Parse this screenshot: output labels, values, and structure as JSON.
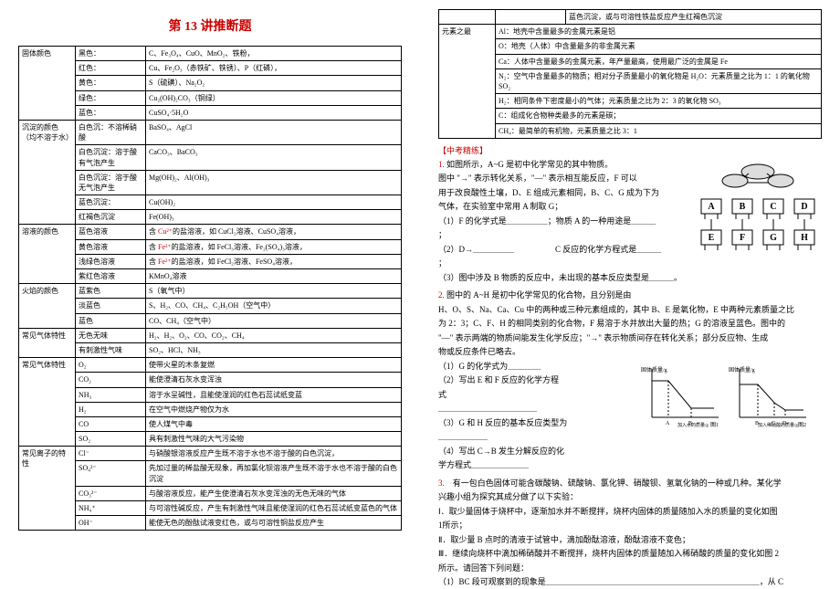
{
  "title": "第 13 讲推断题",
  "left_table": [
    {
      "cat": "固体颜色",
      "rows": [
        {
          "sub": "黑色：",
          "desc": "C、Fe₃O₄、CuO、MnO₂、铁粉，"
        },
        {
          "sub": "红色：",
          "desc": "Cu、Fe₂O₃（赤铁矿、铁锈）、P（红磷），"
        },
        {
          "sub": "黄色：",
          "desc": "S（硫磺）、Na₂O₂"
        },
        {
          "sub": "绿色：",
          "desc": "Cu₂(OH)₂CO₃（铜绿）"
        },
        {
          "sub": "蓝色：",
          "desc": "CuSO₄·5H₂O"
        }
      ]
    },
    {
      "cat": "沉淀的颜色（均不溶于水）",
      "rows": [
        {
          "sub": "白色沉：不溶稀硝酸",
          "desc": "BaSO₄、AgCl"
        },
        {
          "sub": "白色沉淀：溶于酸有气泡产生",
          "desc": "CaCO₃、BaCO₃"
        },
        {
          "sub": "白色沉淀：溶于酸无气泡产生",
          "desc": "Mg(OH)₂、Al(OH)₃"
        },
        {
          "sub": "蓝色沉淀：",
          "desc": "Cu(OH)₂"
        },
        {
          "sub": "红褐色沉淀",
          "desc": "Fe(OH)₃"
        }
      ]
    },
    {
      "cat": "溶液的颜色",
      "rows": [
        {
          "sub": "蓝色溶液",
          "desc": "含 Cu²⁺的盐溶液，如 CuCl₂溶液、CuSO₄溶液，"
        },
        {
          "sub": "黄色溶液",
          "desc": "含 Fe³⁺的盐溶液，如 FeCl₃溶液、Fe₂(SO₄)₃溶液，"
        },
        {
          "sub": "浅绿色溶液",
          "desc": "含 Fe²⁺的盐溶液，如 FeCl₂溶液、FeSO₄溶液，"
        },
        {
          "sub": "紫红色溶液",
          "desc": "KMnO₄溶液"
        }
      ]
    },
    {
      "cat": "火焰的颜色",
      "rows": [
        {
          "sub": "蓝紫色",
          "desc": "S（氧气中）"
        },
        {
          "sub": "淡蓝色",
          "desc": "S、H₂、CO、CH₄、C₂H₅OH（空气中）"
        },
        {
          "sub": "蓝色",
          "desc": "CO、CH₄（空气中）"
        }
      ]
    },
    {
      "cat": "常见气体特性",
      "rows": [
        {
          "sub": "无色无味",
          "desc": "H₂、H₂、O₂、CO、CO₂、CH₄"
        },
        {
          "sub": "有刺激性气味",
          "desc": "SO₂、HCl、NH₃"
        }
      ]
    },
    {
      "cat": "常见气体特性",
      "rows": [
        {
          "sub": "O₂",
          "desc": "使带火星的木条复燃"
        },
        {
          "sub": "CO₂",
          "desc": "能使澄清石灰水变浑浊"
        },
        {
          "sub": "NH₃",
          "desc": "溶于水呈碱性，且能使湿润的红色石蕊试纸变蓝"
        },
        {
          "sub": "H₂",
          "desc": "在空气中燃烧产物仅为水"
        },
        {
          "sub": "CO",
          "desc": "使人煤气中毒"
        },
        {
          "sub": "SO₂",
          "desc": "具有刺激性气味的大气污染物"
        }
      ]
    },
    {
      "cat": "常见离子的特性",
      "rows": [
        {
          "sub": "Cl⁻",
          "desc": "与硝酸银溶液反应产生既不溶于水也不溶于酸的白色沉淀，"
        },
        {
          "sub": "SO₄²⁻",
          "desc": "先加过量的稀盐酸无现象，再加氯化钡溶液产生既不溶于水也不溶于酸的白色沉淀"
        },
        {
          "sub": "CO₃²⁻",
          "desc": "与酸溶液反应，能产生使澄清石灰水变浑浊的无色无味的气体"
        },
        {
          "sub": "NH₄⁺",
          "desc": "与可溶性碱反应，产生有刺激性气味且能使湿润的红色石蕊试纸变蓝色的气体"
        },
        {
          "sub": "OH⁻",
          "desc": "能使无色的酚酞试液变红色，或与可溶性铜盐反应产生"
        }
      ]
    }
  ],
  "right_top_rows": [
    {
      "sub": "",
      "desc": "蓝色沉淀，或与可溶性铁盐反应产生红褐色沉淀"
    }
  ],
  "element_rows": [
    {
      "sub": "Al：地壳中含量最多的金属元素是铝"
    },
    {
      "sub": "O：地壳（人体）中含量最多的非金属元素"
    },
    {
      "sub": "Ca：人体中含量最多的金属元素，年产量最高，使用最广泛的金属是 Fe"
    },
    {
      "sub": "N₂：空气中含量最多的物质；相对分子质量最小的氧化物是 H₂O：元素质量之比为 1：1 的氧化物 SO₂"
    },
    {
      "sub": "H₂：相同条件下密度最小的气体；元素质量之比为 2：3 的氧化物 SO₃"
    },
    {
      "sub": "C：组成化合物种类最多的元素是碳；"
    },
    {
      "sub": "CH₄：最简单的有机物，元素质量之比 3：1"
    }
  ],
  "element_cat": "元素之最",
  "practice_head": "【中考精练】",
  "q1_lines": [
    "1. 如图所示，A~G 是初中化学常见的其中物质。",
    "图中 \"→\" 表示转化关系，\"—\" 表示相互能反应，F 可以",
    "用于改良酸性土壤，D、E 组成元素相同，B、C、G 成为下为",
    "气体，在实验室中常用 A 制取 G；",
    "（1）F 的化学式是＿＿＿＿＿；物质 A 的一种用途是＿＿＿",
    "；",
    "（2）D→＿＿＿＿＿　　　　　C 反应的化学方程式是＿＿＿",
    "；",
    "（3）图中涉及 B 物质的反应中，未出现的基本反应类型是＿＿＿。"
  ],
  "q2_lines": [
    "2. 图中的 A~H 是初中化学常见的化合物，且分别是由",
    "H、O、S、Na、Ca、Cu 中的两种或三种元素组成的，其中 B、E 是氧化物，E 中两种元素质量之比",
    "为 2：3；C、F、H 的相同类别的化合物，F 易溶于水并放出大量的热；G 的溶液呈蓝色。图中的",
    "\"—\" 表示两端的物质间能发生化学反应；\"→\" 表示物质间存在转化关系；部分反应物、生成",
    "物或反应条件已略去。",
    "（1）G 的化学式为＿＿＿＿",
    "（2）写出 E 和 F 反应的化学方程",
    "式",
    "＿＿＿＿＿＿＿＿＿＿＿＿",
    "（3）G 和 H 反应的基本反应类型为",
    "＿＿＿＿＿＿",
    "（4）写出 C→B 发生分解反应的化",
    "学方程式＿＿＿＿＿＿＿"
  ],
  "q3_lines": [
    "3.　有一包白色固体可能含碳酸钠、硫酸钠、氯化钾、硝酸钡、氢氧化钠的一种或几种。某化学",
    "兴趣小组为探究其成分做了以下实验：",
    "Ⅰ．取少量固体于烧杯中，逐渐加水并不断搅拌，烧杯内固体的质量随加入水的质量的变化如图",
    "1所示；",
    "Ⅱ．取少量 B 点时的清液于试管中，滴加酚酞溶液，酚酞溶液不变色；",
    "Ⅲ．继续向烧杯中滴加稀硝酸并不断搅拌，烧杯内固体的质量随加入稀硝酸的质量的变化如图 2",
    "所示。请回答下列问题：",
    "（1）BC 段可观察到的现象是＿＿＿＿＿＿＿＿＿＿＿＿＿＿＿＿＿＿＿＿＿＿＿＿＿＿，从 C"
  ],
  "chart_label_y": "固体质量/g",
  "chart_label_x1": "加入水的质量/g",
  "chart_label_x2": "加入稀硝酸的质量/g",
  "chart1_tag": "图1",
  "chart2_tag": "图2",
  "boxes": [
    "A",
    "B",
    "C",
    "D",
    "E",
    "F",
    "G",
    "H"
  ]
}
